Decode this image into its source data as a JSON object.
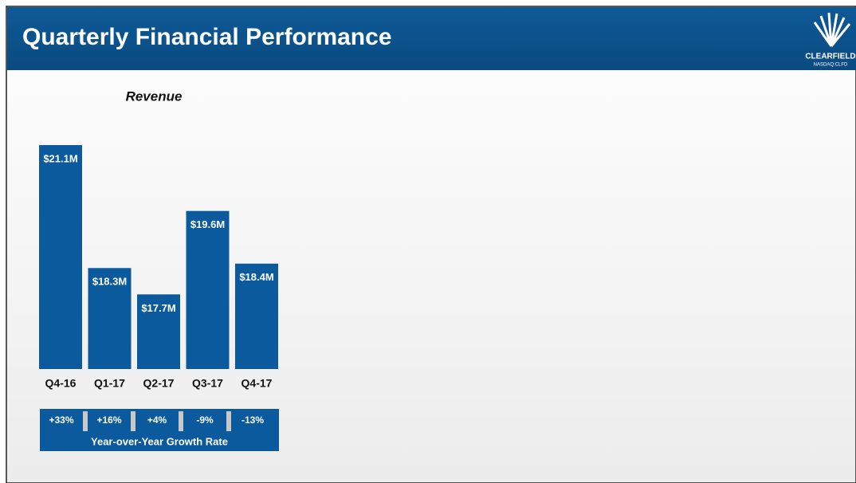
{
  "header": {
    "title": "Quarterly Financial Performance",
    "logo_name": "CLEARFIELD",
    "logo_ticker": "NASDAQ:CLFD"
  },
  "chart_data": {
    "type": "bar",
    "title": "Revenue",
    "categories": [
      "Q4-16",
      "Q1-17",
      "Q2-17",
      "Q3-17",
      "Q4-17"
    ],
    "values": [
      21.1,
      18.3,
      17.7,
      19.6,
      18.4
    ],
    "value_labels": [
      "$21.1M",
      "$18.3M",
      "$17.7M",
      "$19.6M",
      "$18.4M"
    ],
    "color": "#0b5a9e",
    "ylim": [
      16,
      21.5
    ],
    "growth": {
      "name": "Year-over-Year Growth Rate",
      "values": [
        33,
        16,
        4,
        -9,
        -13
      ],
      "value_labels": [
        "+33%",
        "+16%",
        "+4%",
        "-9%",
        "-13%"
      ]
    }
  }
}
